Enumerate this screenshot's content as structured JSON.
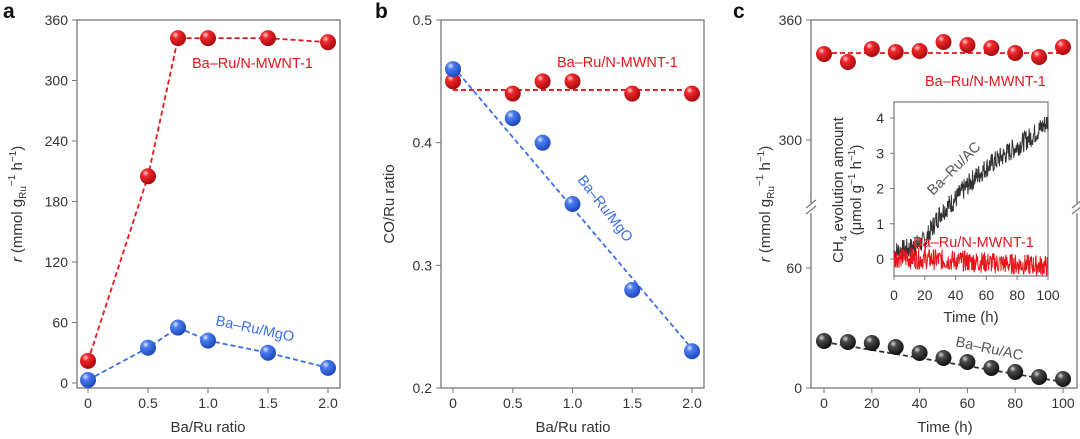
{
  "panel_letters": [
    "a",
    "b",
    "c"
  ],
  "colors": {
    "red": "#e8161b",
    "blue": "#3b6ee6",
    "black": "#333333"
  },
  "chart_data": [
    {
      "type": "scatter",
      "panel": "a",
      "xlabel": "Ba/Ru ratio",
      "ylabel": {
        "var": "r",
        "pre": " (mmol g",
        "sub": "Ru",
        "sup1": "−1",
        "mid": " h",
        "sup2": "−1",
        "end": ")"
      },
      "xlim": [
        0,
        2.0
      ],
      "ylim": [
        0,
        360
      ],
      "xticks": [
        "0",
        "0.5",
        "1.0",
        "1.5",
        "2.0"
      ],
      "yticks": [
        "0",
        "60",
        "120",
        "180",
        "240",
        "300",
        "360"
      ],
      "series": [
        {
          "name": "Ba–Ru/N-MWNT-1",
          "color": "#e8161b",
          "x": [
            0,
            0.5,
            0.75,
            1.0,
            1.5,
            2.0
          ],
          "y": [
            22,
            205,
            342,
            342,
            342,
            338
          ],
          "fit": "connect"
        },
        {
          "name": "Ba–Ru/MgO",
          "color": "#3b6ee6",
          "x": [
            0,
            0.5,
            0.75,
            1.0,
            1.5,
            2.0
          ],
          "y": [
            3,
            35,
            55,
            42,
            30,
            15
          ],
          "fit": "connect"
        }
      ]
    },
    {
      "type": "scatter",
      "panel": "b",
      "xlabel": "Ba/Ru ratio",
      "ylabel": "CO/Ru ratio",
      "xlim": [
        0,
        2.0
      ],
      "ylim": [
        0.2,
        0.5
      ],
      "xticks": [
        "0",
        "0.5",
        "1.0",
        "1.5",
        "2.0"
      ],
      "yticks": [
        "0.2",
        "0.3",
        "0.4",
        "0.5"
      ],
      "series": [
        {
          "name": "Ba–Ru/N-MWNT-1",
          "color": "#e8161b",
          "x": [
            0,
            0.5,
            0.75,
            1.0,
            1.5,
            2.0
          ],
          "y": [
            0.45,
            0.44,
            0.45,
            0.45,
            0.44,
            0.44
          ],
          "fit_line": [
            [
              0,
              0.443
            ],
            [
              2.0,
              0.443
            ]
          ]
        },
        {
          "name": "Ba–Ru/MgO",
          "color": "#3b6ee6",
          "x": [
            0,
            0.5,
            0.75,
            1.0,
            1.5,
            2.0
          ],
          "y": [
            0.46,
            0.42,
            0.4,
            0.35,
            0.28,
            0.23
          ],
          "fit_line": [
            [
              0,
              0.462
            ],
            [
              2.0,
              0.232
            ]
          ]
        }
      ]
    },
    {
      "type": "scatter",
      "panel": "c",
      "xlabel": "Time (h)",
      "ylabel": {
        "var": "r",
        "pre": " (mmol g",
        "sub": "Ru",
        "sup1": "−1",
        "mid": " h",
        "sup2": "−1",
        "end": ")"
      },
      "xlim": [
        0,
        100
      ],
      "ylim": [
        0,
        360
      ],
      "axis_break": [
        60,
        300
      ],
      "xticks": [
        "0",
        "20",
        "40",
        "60",
        "80",
        "100"
      ],
      "yticks": [
        "0",
        "60",
        "300",
        "360"
      ],
      "series": [
        {
          "name": "Ba–Ru/N-MWNT-1",
          "color": "#e8161b",
          "x": [
            0,
            10,
            20,
            30,
            40,
            50,
            60,
            70,
            80,
            90,
            100
          ],
          "y": [
            343,
            339,
            345.5,
            344,
            344.5,
            349,
            347.5,
            346,
            343.5,
            341.5,
            346.5
          ],
          "fit_line": [
            [
              0,
              343.5
            ],
            [
              100,
              343.5
            ]
          ]
        },
        {
          "name": "Ba–Ru/AC",
          "color": "#333333",
          "x": [
            0,
            10,
            20,
            30,
            40,
            50,
            60,
            70,
            80,
            90,
            100
          ],
          "y": [
            23.5,
            23,
            22.5,
            20.5,
            17.5,
            15,
            13,
            10,
            8,
            5.5,
            4.5
          ],
          "fit_line": [
            [
              0,
              23
            ],
            [
              100,
              3
            ]
          ]
        }
      ]
    },
    {
      "type": "line",
      "panel": "c-inset",
      "xlabel": "Time (h)",
      "ylabel": [
        "CH4 evolution amount",
        "(μmol g−1 h−1)"
      ],
      "ylabel_parts": {
        "l1a": "CH",
        "l1sub": "4",
        "l1b": " evolution amount",
        "l2a": "(μmol g",
        "l2sup1": "−1",
        "l2b": " h",
        "l2sup2": "−1",
        "l2c": ")"
      },
      "xlim": [
        0,
        100
      ],
      "ylim": [
        -0.5,
        4.5
      ],
      "xticks": [
        "0",
        "20",
        "40",
        "60",
        "80",
        "100"
      ],
      "yticks": [
        "0",
        "1",
        "2",
        "3",
        "4"
      ],
      "series": [
        {
          "name": "Ba–Ru/AC",
          "color": "#333333",
          "x": [
            0,
            10,
            20,
            30,
            40,
            50,
            60,
            70,
            80,
            90,
            100
          ],
          "y": [
            0.2,
            0.3,
            0.5,
            1.3,
            1.7,
            2.2,
            2.6,
            2.9,
            3.2,
            3.5,
            3.9
          ]
        },
        {
          "name": "Ba–Ru/N-MWNT-1",
          "color": "#e8161b",
          "x": [
            0,
            20,
            40,
            60,
            80,
            100
          ],
          "y": [
            0.05,
            0.0,
            -0.05,
            -0.1,
            -0.15,
            -0.2
          ]
        }
      ]
    }
  ]
}
